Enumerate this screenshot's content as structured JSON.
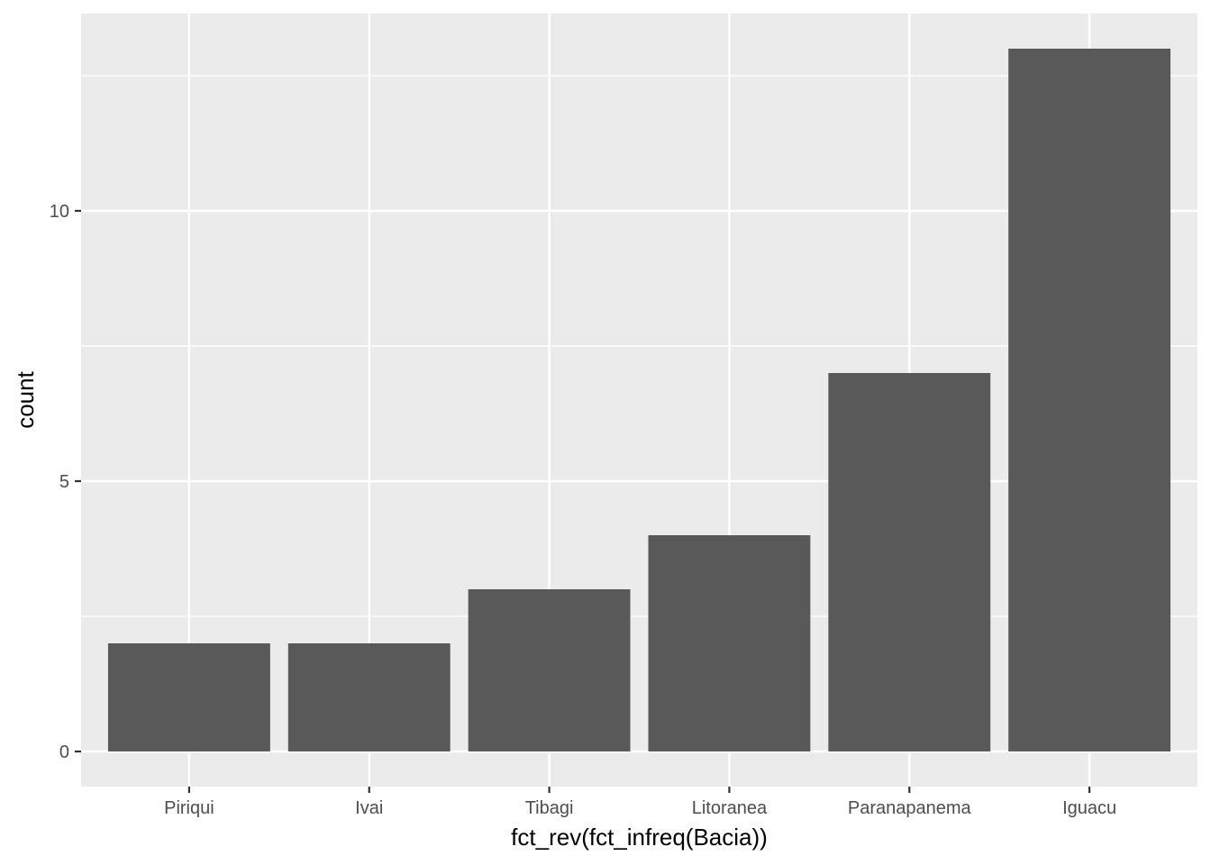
{
  "chart_data": {
    "type": "bar",
    "categories": [
      "Piriqui",
      "Ivai",
      "Tibagi",
      "Litoranea",
      "Paranapanema",
      "Iguacu"
    ],
    "values": [
      2,
      2,
      3,
      4,
      7,
      13
    ],
    "xlabel": "fct_rev(fct_infreq(Bacia))",
    "ylabel": "count",
    "yticks": [
      0,
      5,
      10
    ],
    "ylim": [
      -0.65,
      13.65
    ],
    "grid": true,
    "colors": {
      "panel_background": "#ebebeb",
      "grid_line": "#ffffff",
      "bar_fill": "#595959",
      "tick_mark": "#333333",
      "tick_text": "#4d4d4d"
    }
  }
}
